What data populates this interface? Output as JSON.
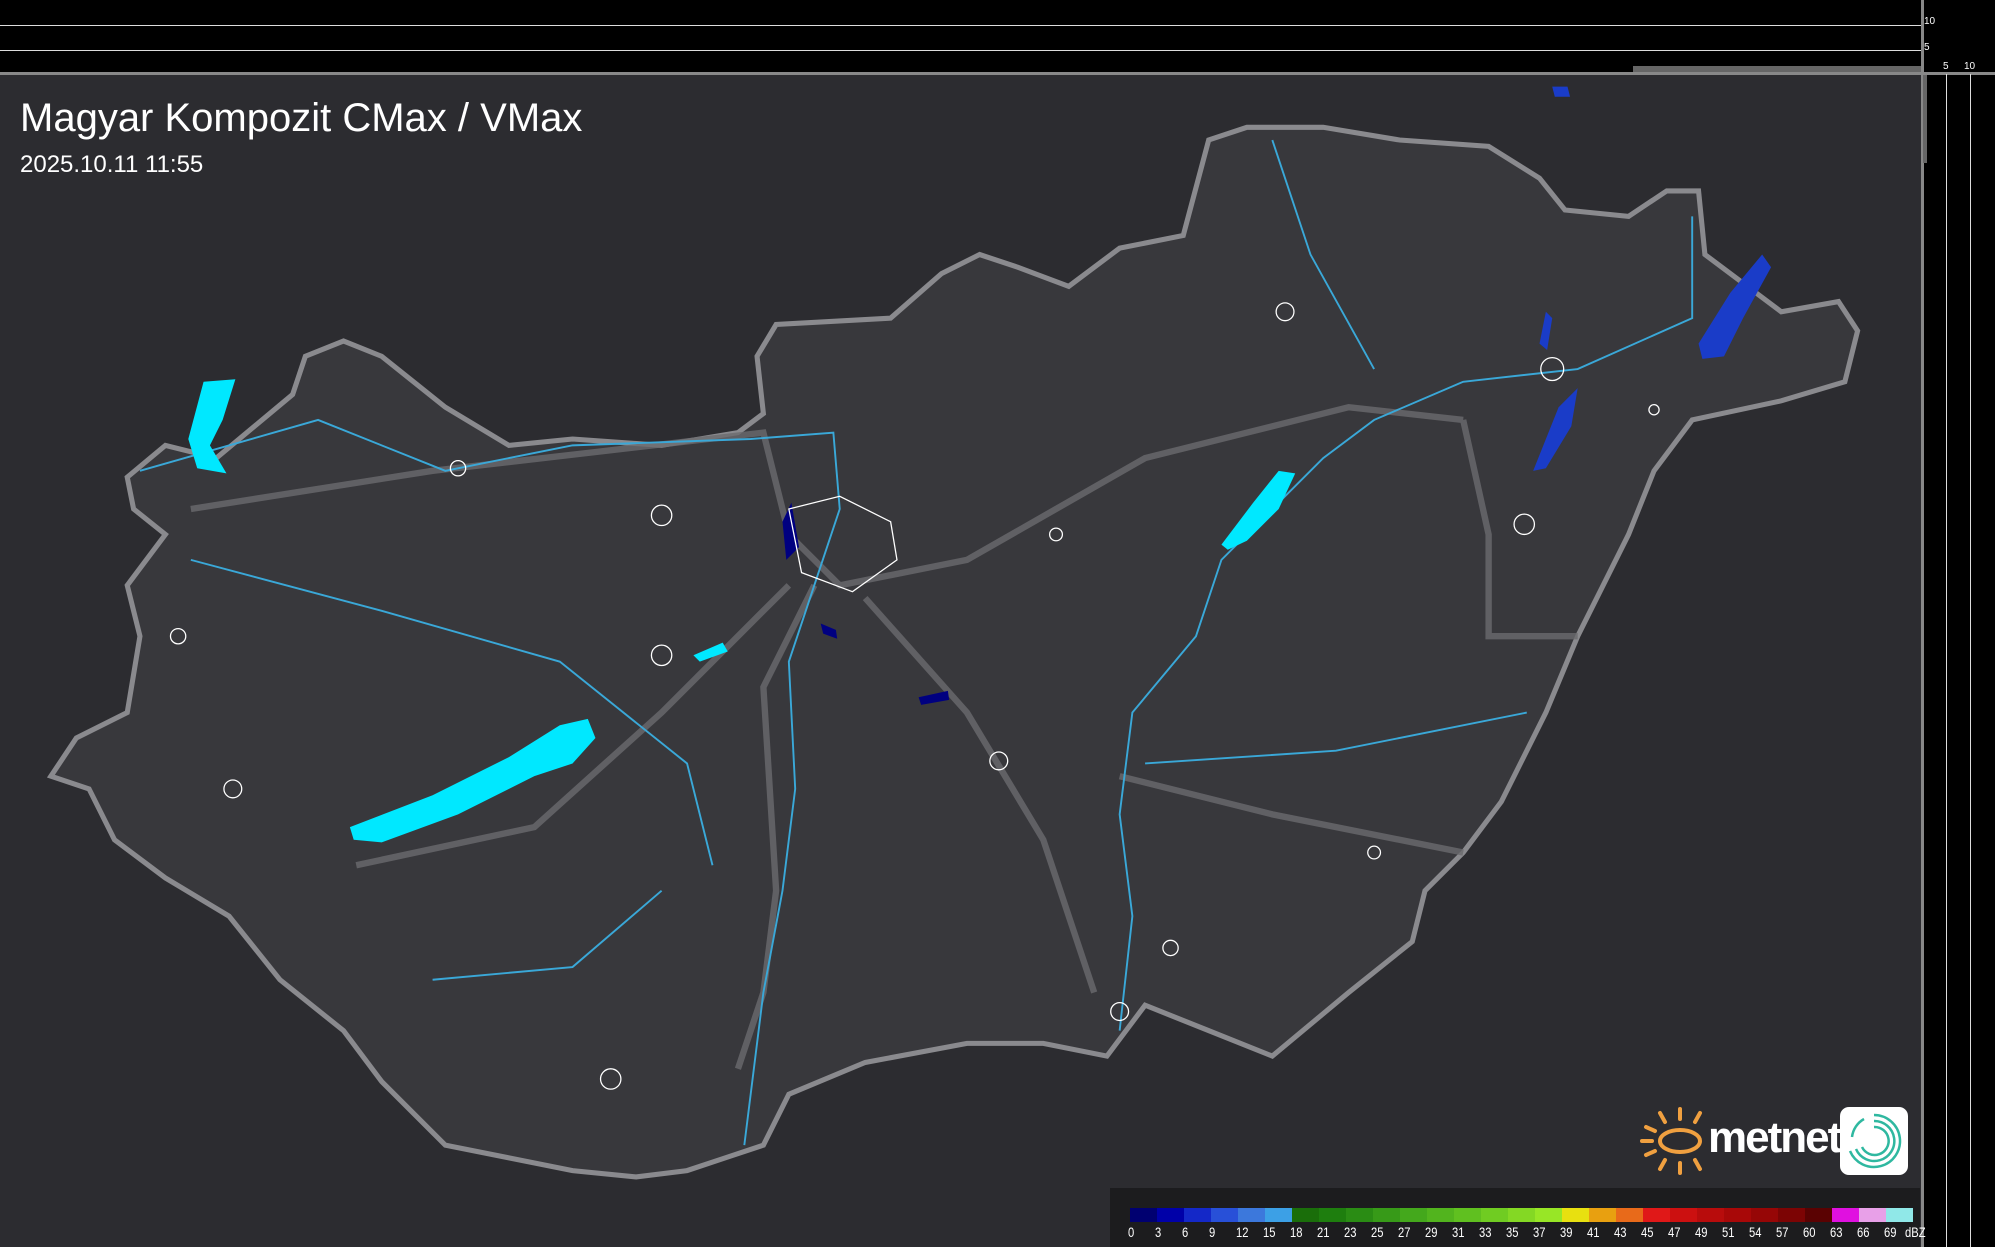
{
  "header": {
    "title": "Magyar Kompozit CMax / VMax",
    "timestamp": "2025.10.11 11:55"
  },
  "side_axes": {
    "top_labels": [
      "10",
      "5"
    ],
    "right_labels": [
      "5",
      "10"
    ]
  },
  "logo": {
    "text": "metnet",
    "sun_color": "#f0a040",
    "icon_color": "#2fb8a0"
  },
  "legend": {
    "unit": "dBZ",
    "labels": [
      "0",
      "3",
      "6",
      "9",
      "12",
      "15",
      "18",
      "21",
      "23",
      "25",
      "27",
      "29",
      "31",
      "33",
      "35",
      "37",
      "39",
      "41",
      "43",
      "45",
      "47",
      "49",
      "51",
      "54",
      "57",
      "60",
      "63",
      "66",
      "69"
    ],
    "colors": [
      "#000070",
      "#0000a8",
      "#1428c8",
      "#2850d8",
      "#3c78dc",
      "#3ca0e6",
      "#1a6e0a",
      "#1e7e0e",
      "#2a8c14",
      "#379a18",
      "#44a81c",
      "#52b41e",
      "#60c020",
      "#70cc22",
      "#84d824",
      "#98e626",
      "#e8e010",
      "#e8a010",
      "#e86a1a",
      "#e01818",
      "#cc1010",
      "#b80c0c",
      "#a80808",
      "#960606",
      "#7c0404",
      "#5a0202",
      "#e010e0",
      "#e8a0e8",
      "#90e8e8"
    ]
  },
  "map_colors": {
    "border": "#8a8a8e",
    "rivers": "#3aa8d8",
    "lakes": "#00e8ff",
    "settlements": "#ffffff"
  }
}
